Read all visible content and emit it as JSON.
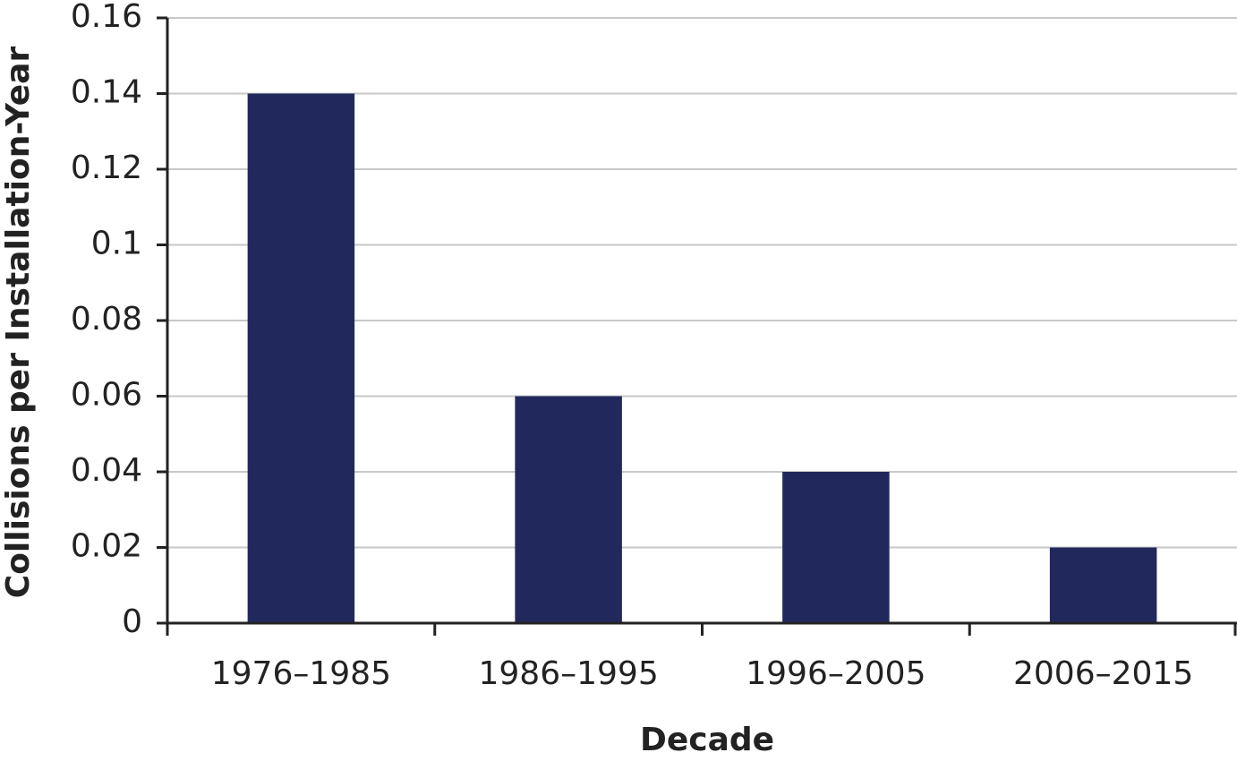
{
  "chart_data": {
    "type": "bar",
    "x_label": "Decade",
    "y_label": "Collisions per Installation-Year",
    "categories": [
      "1976–1985",
      "1986–1995",
      "1996–2005",
      "2006–2015"
    ],
    "values": [
      0.14,
      0.06,
      0.04,
      0.02
    ],
    "color": "#21295c",
    "ylim": [
      0,
      0.16
    ],
    "yticks": [
      0,
      0.02,
      0.04,
      0.06,
      0.08,
      0.1,
      0.12,
      0.14,
      0.16
    ],
    "grid": true
  }
}
